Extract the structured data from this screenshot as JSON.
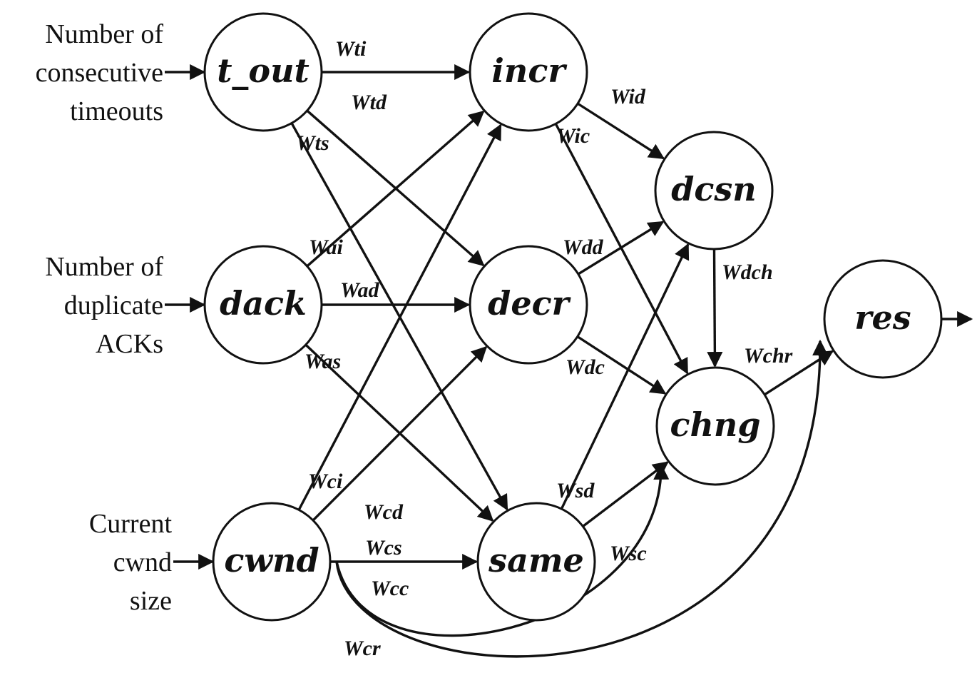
{
  "nodes": [
    {
      "id": "t_out",
      "label": "t_out"
    },
    {
      "id": "dack",
      "label": "dack"
    },
    {
      "id": "cwnd",
      "label": "cwnd"
    },
    {
      "id": "incr",
      "label": "incr"
    },
    {
      "id": "decr",
      "label": "decr"
    },
    {
      "id": "same",
      "label": "same"
    },
    {
      "id": "dcsn",
      "label": "dcsn"
    },
    {
      "id": "chng",
      "label": "chng"
    },
    {
      "id": "res",
      "label": "res"
    }
  ],
  "inputs": [
    {
      "target": "t_out",
      "lines": [
        "Number of",
        "consecutive",
        "timeouts"
      ]
    },
    {
      "target": "dack",
      "lines": [
        "Number of",
        "duplicate",
        "ACKs"
      ]
    },
    {
      "target": "cwnd",
      "lines": [
        "Current",
        "cwnd",
        "size"
      ]
    }
  ],
  "edges": [
    {
      "from": "t_out",
      "to": "incr",
      "weight": "Wti"
    },
    {
      "from": "t_out",
      "to": "decr",
      "weight": "Wtd"
    },
    {
      "from": "t_out",
      "to": "same",
      "weight": "Wts"
    },
    {
      "from": "dack",
      "to": "incr",
      "weight": "Wai"
    },
    {
      "from": "dack",
      "to": "decr",
      "weight": "Wad"
    },
    {
      "from": "dack",
      "to": "same",
      "weight": "Was"
    },
    {
      "from": "cwnd",
      "to": "incr",
      "weight": "Wci"
    },
    {
      "from": "cwnd",
      "to": "decr",
      "weight": "Wcd"
    },
    {
      "from": "cwnd",
      "to": "same",
      "weight": "Wcs"
    },
    {
      "from": "cwnd",
      "to": "chng",
      "weight": "Wcc"
    },
    {
      "from": "cwnd",
      "to": "res",
      "weight": "Wcr"
    },
    {
      "from": "incr",
      "to": "dcsn",
      "weight": "Wid"
    },
    {
      "from": "incr",
      "to": "chng",
      "weight": "Wic"
    },
    {
      "from": "decr",
      "to": "dcsn",
      "weight": "Wdd"
    },
    {
      "from": "decr",
      "to": "chng",
      "weight": "Wdc"
    },
    {
      "from": "same",
      "to": "dcsn",
      "weight": "Wsd"
    },
    {
      "from": "same",
      "to": "chng",
      "weight": "Wsc"
    },
    {
      "from": "dcsn",
      "to": "chng",
      "weight": "Wdch"
    },
    {
      "from": "chng",
      "to": "res",
      "weight": "Wchr"
    }
  ],
  "output": {
    "from": "res"
  }
}
